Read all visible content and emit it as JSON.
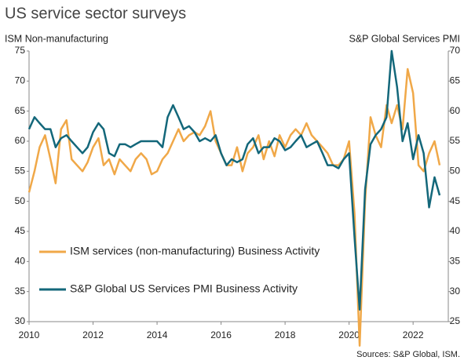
{
  "chart_data": {
    "type": "line",
    "title": "US service sector surveys",
    "y_label": "ISM Non-manufacturing",
    "y2_label": "S&P Global Services PMI",
    "source": "Sources: S&P Global, ISM.",
    "x": [
      2010,
      2010.17,
      2010.33,
      2010.5,
      2010.67,
      2010.83,
      2011,
      2011.17,
      2011.33,
      2011.5,
      2011.67,
      2011.83,
      2012,
      2012.17,
      2012.33,
      2012.5,
      2012.67,
      2012.83,
      2013,
      2013.17,
      2013.33,
      2013.5,
      2013.67,
      2013.83,
      2014,
      2014.17,
      2014.33,
      2014.5,
      2014.67,
      2014.83,
      2015,
      2015.17,
      2015.33,
      2015.5,
      2015.67,
      2015.83,
      2016,
      2016.17,
      2016.33,
      2016.5,
      2016.67,
      2016.83,
      2017,
      2017.17,
      2017.33,
      2017.5,
      2017.67,
      2017.83,
      2018,
      2018.17,
      2018.33,
      2018.5,
      2018.67,
      2018.83,
      2019,
      2019.17,
      2019.33,
      2019.5,
      2019.67,
      2019.83,
      2020,
      2020.17,
      2020.33,
      2020.5,
      2020.67,
      2020.83,
      2021,
      2021.17,
      2021.33,
      2021.5,
      2021.67,
      2021.83,
      2022,
      2022.17,
      2022.33,
      2022.5,
      2022.67,
      2022.83
    ],
    "series": [
      {
        "name": "ISM services (non-manufacturing) Business Activity",
        "color": "#f0a848",
        "axis": "y",
        "values": [
          51.5,
          55,
          59,
          61,
          57,
          53,
          62,
          63.5,
          57,
          56,
          55,
          56.5,
          59,
          60.5,
          56,
          57,
          54.5,
          57,
          56,
          55,
          57,
          58,
          57,
          54.5,
          55,
          57,
          58,
          60,
          62,
          60,
          61,
          61.5,
          61,
          62.5,
          65,
          60,
          58,
          56,
          56,
          59,
          55,
          58,
          59,
          61,
          57,
          60,
          57.5,
          61,
          59,
          61,
          62,
          61,
          63,
          61,
          60,
          59,
          58,
          56,
          56,
          57,
          60,
          48,
          26,
          50,
          64,
          61,
          59,
          66,
          63,
          66,
          62,
          72,
          68,
          56,
          55,
          58,
          60,
          56
        ]
      },
      {
        "name": "S&P Global US Services PMI Business Activity",
        "color": "#13677a",
        "axis": "y2",
        "values": [
          57,
          59,
          58,
          57,
          57,
          54,
          55.5,
          56,
          55,
          54,
          53,
          54,
          56.5,
          58,
          57,
          53,
          52.5,
          54.5,
          54.5,
          54,
          54.5,
          55,
          55,
          55,
          55,
          54,
          59,
          61,
          59,
          57,
          57.5,
          56.5,
          55,
          55.5,
          55,
          56,
          53,
          51,
          52,
          51.5,
          52,
          54.5,
          55.5,
          53,
          54,
          54,
          55.5,
          55,
          53.5,
          54,
          55,
          56,
          54,
          54.5,
          55,
          53,
          51,
          51,
          50.5,
          52,
          53,
          39,
          27,
          47,
          54.5,
          56,
          57,
          59,
          70,
          64,
          55,
          58,
          52,
          56,
          53,
          44,
          49,
          46
        ]
      }
    ],
    "xlim": [
      2010,
      2023.1
    ],
    "xticks": [
      2010,
      2012,
      2014,
      2016,
      2018,
      2020,
      2022
    ],
    "ylim": [
      30,
      75
    ],
    "yticks": [
      30,
      35,
      40,
      45,
      50,
      55,
      60,
      65,
      70,
      75
    ],
    "y2lim": [
      25,
      70
    ],
    "y2ticks": [
      25,
      30,
      35,
      40,
      45,
      50,
      55,
      60,
      65,
      70
    ],
    "grid": false
  }
}
